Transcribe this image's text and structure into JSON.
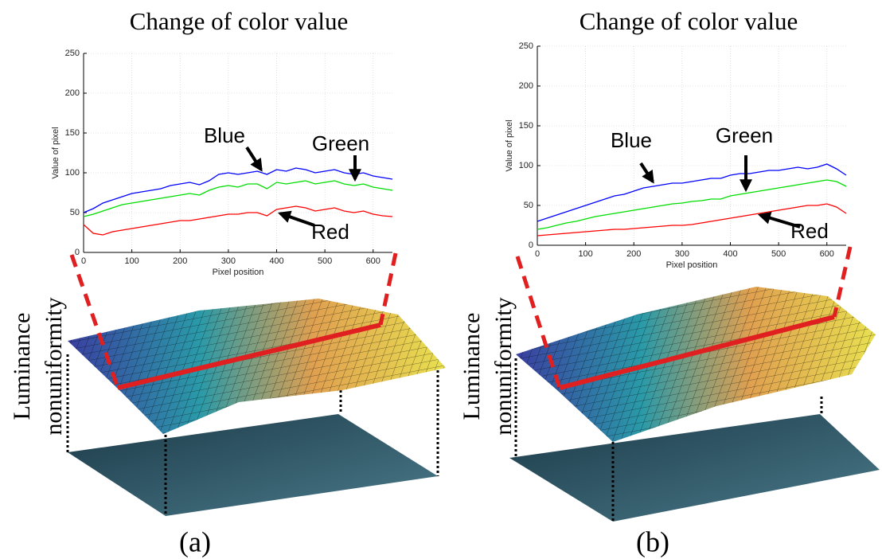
{
  "chart_data": [
    {
      "type": "line",
      "title": "Change of color value",
      "x_label": "Pixel position",
      "y_label": "Value of pixel",
      "x": [
        0,
        20,
        40,
        60,
        80,
        100,
        120,
        140,
        160,
        180,
        200,
        220,
        240,
        260,
        280,
        300,
        320,
        340,
        360,
        380,
        400,
        420,
        440,
        460,
        480,
        500,
        520,
        540,
        560,
        580,
        600,
        620,
        640
      ],
      "series": [
        {
          "name": "Blue",
          "color": "#0000ff",
          "values": [
            50,
            55,
            62,
            66,
            70,
            74,
            76,
            78,
            80,
            84,
            86,
            88,
            85,
            90,
            98,
            100,
            98,
            100,
            102,
            98,
            104,
            102,
            106,
            104,
            100,
            102,
            104,
            100,
            98,
            100,
            96,
            94,
            92
          ]
        },
        {
          "name": "Green",
          "color": "#00dd00",
          "values": [
            45,
            48,
            52,
            56,
            60,
            62,
            64,
            66,
            68,
            70,
            72,
            74,
            72,
            78,
            82,
            84,
            82,
            86,
            86,
            80,
            88,
            86,
            88,
            90,
            86,
            88,
            90,
            86,
            84,
            86,
            82,
            80,
            78
          ]
        },
        {
          "name": "Red",
          "color": "#ff0000",
          "values": [
            35,
            24,
            22,
            26,
            28,
            30,
            32,
            34,
            36,
            38,
            40,
            40,
            42,
            44,
            46,
            48,
            48,
            50,
            50,
            46,
            54,
            56,
            58,
            56,
            52,
            54,
            56,
            52,
            50,
            52,
            48,
            46,
            45
          ]
        }
      ],
      "xlim": [
        0,
        640
      ],
      "xticks": [
        0,
        100,
        200,
        300,
        400,
        500,
        600
      ],
      "ylim": [
        0,
        250
      ],
      "yticks": [
        0,
        50,
        100,
        150,
        200,
        250
      ],
      "grid": true,
      "caption": "(a)",
      "side_label": [
        "Luminance",
        "nonuniformity"
      ]
    },
    {
      "type": "line",
      "title": "Change of color value",
      "x_label": "Pixel position",
      "y_label": "Value of pixel",
      "x": [
        0,
        20,
        40,
        60,
        80,
        100,
        120,
        140,
        160,
        180,
        200,
        220,
        240,
        260,
        280,
        300,
        320,
        340,
        360,
        380,
        400,
        420,
        440,
        460,
        480,
        500,
        520,
        540,
        560,
        580,
        600,
        620,
        640
      ],
      "series": [
        {
          "name": "Blue",
          "color": "#0000ff",
          "values": [
            30,
            34,
            38,
            42,
            46,
            50,
            54,
            58,
            62,
            64,
            68,
            72,
            74,
            76,
            78,
            78,
            80,
            82,
            84,
            84,
            88,
            90,
            90,
            92,
            94,
            94,
            96,
            98,
            96,
            98,
            102,
            96,
            88
          ]
        },
        {
          "name": "Green",
          "color": "#00dd00",
          "values": [
            20,
            22,
            25,
            28,
            30,
            33,
            36,
            38,
            40,
            42,
            44,
            46,
            48,
            50,
            52,
            53,
            55,
            56,
            58,
            58,
            62,
            64,
            66,
            68,
            70,
            72,
            74,
            76,
            78,
            80,
            82,
            80,
            74
          ]
        },
        {
          "name": "Red",
          "color": "#ff0000",
          "values": [
            12,
            13,
            14,
            15,
            16,
            17,
            18,
            19,
            20,
            20,
            21,
            22,
            23,
            24,
            25,
            25,
            26,
            28,
            30,
            32,
            34,
            36,
            38,
            40,
            42,
            44,
            46,
            48,
            50,
            50,
            52,
            48,
            40
          ]
        }
      ],
      "xlim": [
        0,
        640
      ],
      "xticks": [
        0,
        100,
        200,
        300,
        400,
        500,
        600
      ],
      "ylim": [
        0,
        250
      ],
      "yticks": [
        0,
        50,
        100,
        150,
        200,
        250
      ],
      "grid": true,
      "caption": "(b)",
      "side_label": [
        "Luminance",
        "nonuniformity"
      ]
    }
  ]
}
